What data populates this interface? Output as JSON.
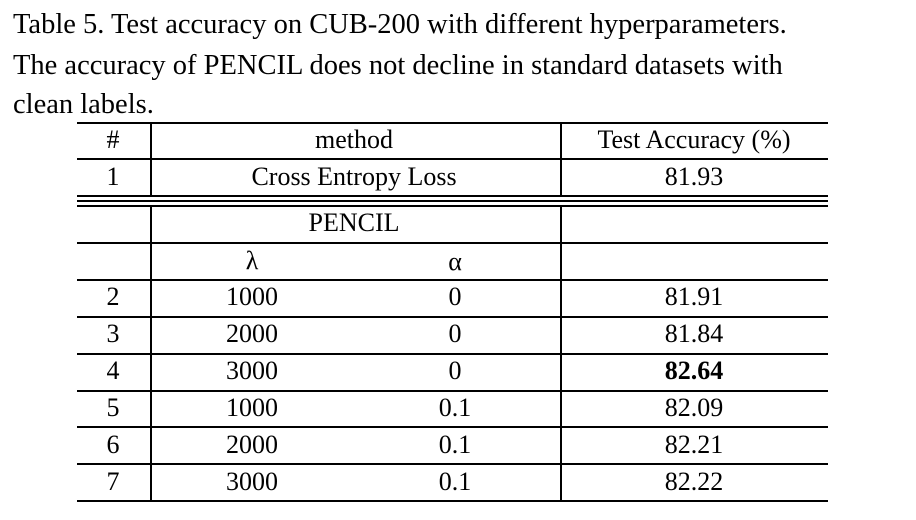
{
  "caption_lines": [
    "Table 5. Test accuracy on CUB-200 with different hyperparameters.",
    "The accuracy of PENCIL does not decline in standard datasets with",
    "clean labels."
  ],
  "table": {
    "header": [
      "#",
      "method",
      "Test Accuracy (%)"
    ],
    "baseline": [
      1,
      "Cross Entropy Loss",
      81.93
    ],
    "group": "PENCIL",
    "subheader": [
      "λ",
      "α"
    ],
    "rows": [
      [
        2,
        1000,
        0,
        81.91
      ],
      [
        3,
        2000,
        0,
        81.84
      ],
      [
        4,
        3000,
        0,
        82.64
      ],
      [
        5,
        1000,
        0.1,
        82.09
      ],
      [
        6,
        2000,
        0.1,
        82.21
      ],
      [
        7,
        3000,
        0.1,
        82.22
      ]
    ]
  }
}
